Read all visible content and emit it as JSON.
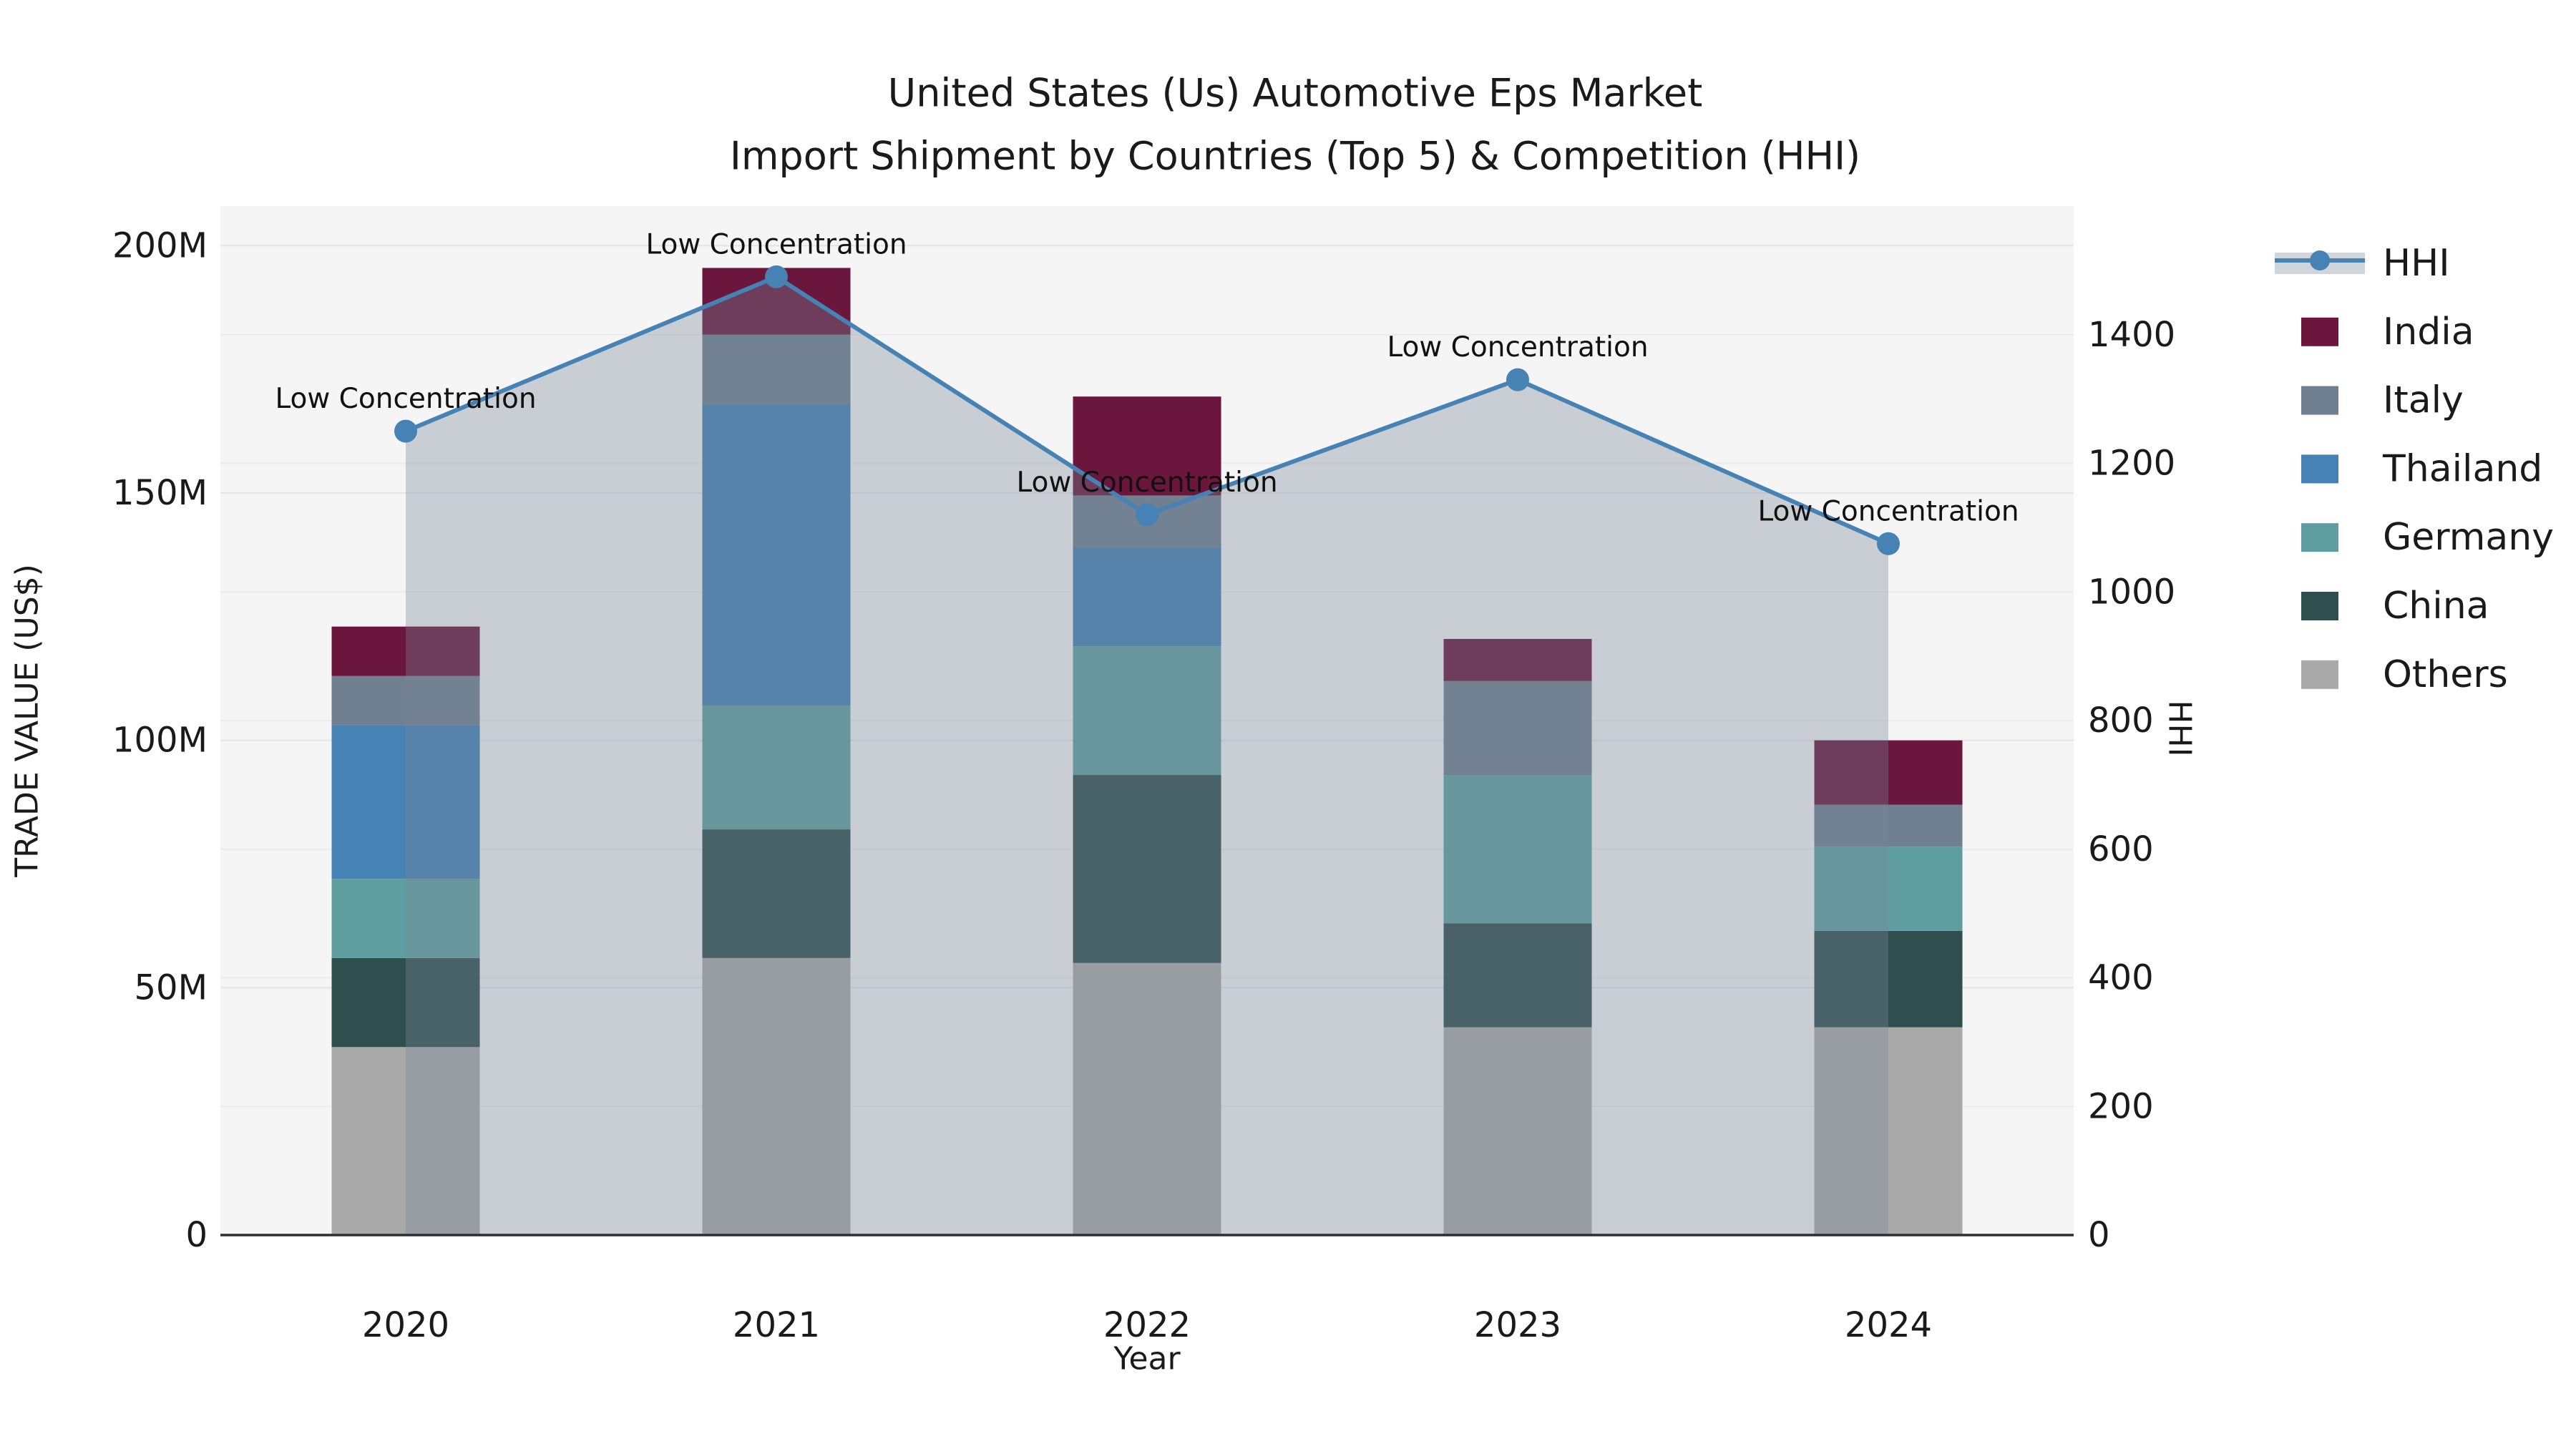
{
  "title": {
    "line1": "United States (Us) Automotive Eps Market",
    "line2": "Import Shipment by Countries (Top 5) & Competition (HHI)"
  },
  "axis_titles": {
    "y_left": "TRADE VALUE (US$)",
    "y_right": "HHI",
    "x": "Year"
  },
  "colors": {
    "figure_background": "#ffffff",
    "plot_background": "#f5f5f5",
    "gridline": "#e4e4e6",
    "axis_line": "#2f2f2f",
    "hhi_line": "#4682b4",
    "hhi_area_fill": "rgba(119,136,153,0.35)",
    "india": "#6b163c",
    "italy": "#708090",
    "thailand": "#4682b4",
    "germany": "#5f9ea0",
    "china": "#2f4f4f",
    "others": "#a9a9a9"
  },
  "chart_data": {
    "type": "stacked-bar+line",
    "title": "United States (Us) Automotive Eps Market / Import Shipment by Countries (Top 5) & Competition (HHI)",
    "categories": [
      "2020",
      "2021",
      "2022",
      "2023",
      "2024"
    ],
    "value_unit": "US$ (millions)",
    "stack_order_bottom_to_top": [
      "Others",
      "China",
      "Germany",
      "Thailand",
      "Italy",
      "India"
    ],
    "series": [
      {
        "name": "India",
        "color": "#6b163c",
        "values": [
          10,
          13.5,
          20,
          8.5,
          13
        ]
      },
      {
        "name": "Italy",
        "color": "#708090",
        "values": [
          10,
          14,
          10.5,
          19,
          8.5
        ]
      },
      {
        "name": "Thailand",
        "color": "#4682b4",
        "values": [
          31,
          61,
          20,
          0,
          0
        ]
      },
      {
        "name": "Germany",
        "color": "#5f9ea0",
        "values": [
          16,
          25,
          26,
          30,
          17
        ]
      },
      {
        "name": "China",
        "color": "#2f4f4f",
        "values": [
          18,
          26,
          38,
          21,
          19.5
        ]
      },
      {
        "name": "Others",
        "color": "#a9a9a9",
        "values": [
          38,
          56,
          55,
          42,
          42
        ]
      }
    ],
    "line_series": {
      "name": "HHI",
      "axis": "right",
      "color": "#4682b4",
      "area_fill": "rgba(119,136,153,0.35)",
      "values": [
        1250,
        1490,
        1120,
        1330,
        1075
      ],
      "point_annotations": [
        "Low Concentration",
        "Low Concentration",
        "Low Concentration",
        "Low Concentration",
        "Low Concentration"
      ]
    },
    "y_left_axis": {
      "label": "TRADE VALUE (US$)",
      "range_millions": [
        0,
        208
      ],
      "ticks": [
        {
          "v": 0,
          "label": "0"
        },
        {
          "v": 50,
          "label": "50M"
        },
        {
          "v": 100,
          "label": "100M"
        },
        {
          "v": 150,
          "label": "150M"
        },
        {
          "v": 200,
          "label": "200M"
        }
      ]
    },
    "y_right_axis": {
      "label": "HHI",
      "range": [
        0,
        1600
      ],
      "ticks": [
        {
          "v": 0,
          "label": "0"
        },
        {
          "v": 200,
          "label": "200"
        },
        {
          "v": 400,
          "label": "400"
        },
        {
          "v": 600,
          "label": "600"
        },
        {
          "v": 800,
          "label": "800"
        },
        {
          "v": 1000,
          "label": "1000"
        },
        {
          "v": 1200,
          "label": "1200"
        },
        {
          "v": 1400,
          "label": "1400"
        }
      ]
    },
    "x_axis": {
      "label": "Year"
    },
    "grid": true,
    "legend_position": "right"
  },
  "legend": {
    "items": [
      {
        "label": "HHI",
        "type": "line",
        "color": "#4682b4"
      },
      {
        "label": "India",
        "type": "patch",
        "color": "#6b163c"
      },
      {
        "label": "Italy",
        "type": "patch",
        "color": "#708090"
      },
      {
        "label": "Thailand",
        "type": "patch",
        "color": "#4682b4"
      },
      {
        "label": "Germany",
        "type": "patch",
        "color": "#5f9ea0"
      },
      {
        "label": "China",
        "type": "patch",
        "color": "#2f4f4f"
      },
      {
        "label": "Others",
        "type": "patch",
        "color": "#a9a9a9"
      }
    ]
  }
}
